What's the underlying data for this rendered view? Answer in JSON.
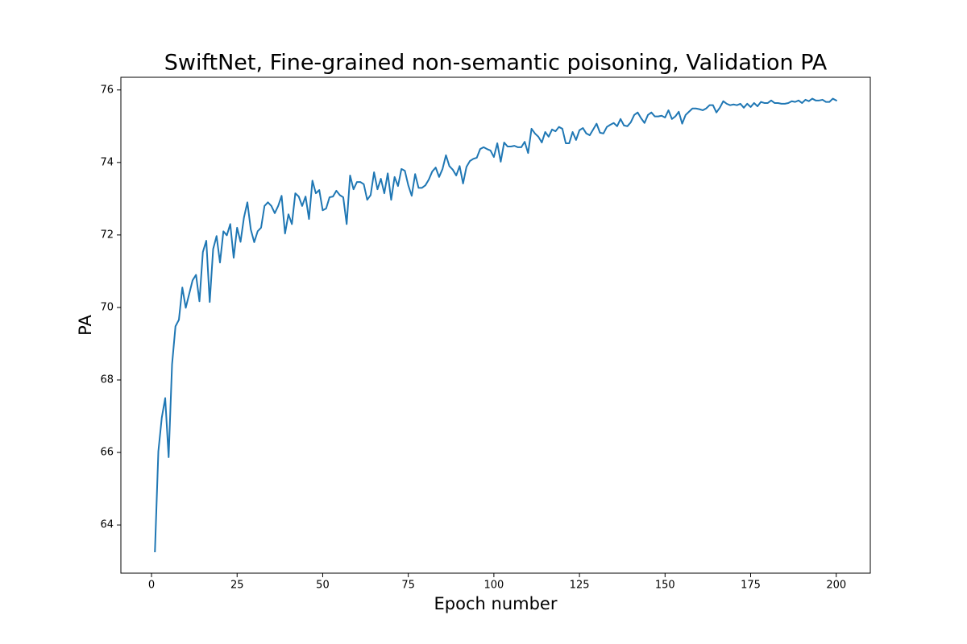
{
  "chart_data": {
    "type": "line",
    "title": "SwiftNet, Fine-grained non-semantic poisoning, Validation PA",
    "x_label": "Epoch number",
    "y_label": "PA",
    "xlim": [
      -8.95,
      209.95
    ],
    "ylim": [
      62.67,
      76.35
    ],
    "xticks": [
      0,
      25,
      50,
      75,
      100,
      125,
      150,
      175,
      200
    ],
    "yticks": [
      64,
      66,
      68,
      70,
      72,
      74,
      76
    ],
    "grid": false,
    "x": [
      1,
      2,
      3,
      4,
      5,
      6,
      7,
      8,
      9,
      10,
      11,
      12,
      13,
      14,
      15,
      16,
      17,
      18,
      19,
      20,
      21,
      22,
      23,
      24,
      25,
      26,
      27,
      28,
      29,
      30,
      31,
      32,
      33,
      34,
      35,
      36,
      37,
      38,
      39,
      40,
      41,
      42,
      43,
      44,
      45,
      46,
      47,
      48,
      49,
      50,
      51,
      52,
      53,
      54,
      55,
      56,
      57,
      58,
      59,
      60,
      61,
      62,
      63,
      64,
      65,
      66,
      67,
      68,
      69,
      70,
      71,
      72,
      73,
      74,
      75,
      76,
      77,
      78,
      79,
      80,
      81,
      82,
      83,
      84,
      85,
      86,
      87,
      88,
      89,
      90,
      91,
      92,
      93,
      94,
      95,
      96,
      97,
      98,
      99,
      100,
      101,
      102,
      103,
      104,
      105,
      106,
      107,
      108,
      109,
      110,
      111,
      112,
      113,
      114,
      115,
      116,
      117,
      118,
      119,
      120,
      121,
      122,
      123,
      124,
      125,
      126,
      127,
      128,
      129,
      130,
      131,
      132,
      133,
      134,
      135,
      136,
      137,
      138,
      139,
      140,
      141,
      142,
      143,
      144,
      145,
      146,
      147,
      148,
      149,
      150,
      151,
      152,
      153,
      154,
      155,
      156,
      157,
      158,
      159,
      160,
      161,
      162,
      163,
      164,
      165,
      166,
      167,
      168,
      169,
      170,
      171,
      172,
      173,
      174,
      175,
      176,
      177,
      178,
      179,
      180,
      181,
      182,
      183,
      184,
      185,
      186,
      187,
      188,
      189,
      190,
      191,
      192,
      193,
      194,
      195,
      196,
      197,
      198,
      199,
      200
    ],
    "series": [
      {
        "color": "#1f77b4",
        "values": [
          63.27,
          66.03,
          66.96,
          67.5,
          65.87,
          68.43,
          69.48,
          69.66,
          70.55,
          69.99,
          70.37,
          70.75,
          70.9,
          70.17,
          71.53,
          71.84,
          70.15,
          71.61,
          71.97,
          71.24,
          72.1,
          71.99,
          72.3,
          71.37,
          72.2,
          71.81,
          72.48,
          72.9,
          72.15,
          71.8,
          72.1,
          72.2,
          72.8,
          72.9,
          72.8,
          72.6,
          72.8,
          73.08,
          72.04,
          72.57,
          72.3,
          73.15,
          73.06,
          72.8,
          73.06,
          72.44,
          73.5,
          73.15,
          73.24,
          72.68,
          72.73,
          73.04,
          73.06,
          73.22,
          73.1,
          73.04,
          72.3,
          73.64,
          73.26,
          73.46,
          73.46,
          73.4,
          72.97,
          73.1,
          73.73,
          73.26,
          73.55,
          73.15,
          73.7,
          72.97,
          73.6,
          73.35,
          73.82,
          73.77,
          73.37,
          73.08,
          73.68,
          73.3,
          73.3,
          73.37,
          73.53,
          73.75,
          73.86,
          73.6,
          73.82,
          74.2,
          73.9,
          73.8,
          73.64,
          73.9,
          73.42,
          73.88,
          74.04,
          74.1,
          74.13,
          74.37,
          74.42,
          74.37,
          74.33,
          74.15,
          74.53,
          74.02,
          74.55,
          74.44,
          74.44,
          74.46,
          74.42,
          74.42,
          74.57,
          74.26,
          74.93,
          74.8,
          74.71,
          74.55,
          74.84,
          74.71,
          74.91,
          74.86,
          74.98,
          74.93,
          74.53,
          74.53,
          74.84,
          74.62,
          74.89,
          74.95,
          74.8,
          74.75,
          74.91,
          75.07,
          74.82,
          74.8,
          74.98,
          75.04,
          75.09,
          75.0,
          75.2,
          75.02,
          75.0,
          75.11,
          75.31,
          75.38,
          75.22,
          75.09,
          75.31,
          75.38,
          75.27,
          75.27,
          75.29,
          75.24,
          75.44,
          75.2,
          75.27,
          75.4,
          75.07,
          75.31,
          75.4,
          75.49,
          75.49,
          75.47,
          75.44,
          75.49,
          75.58,
          75.58,
          75.38,
          75.51,
          75.69,
          75.62,
          75.58,
          75.6,
          75.58,
          75.62,
          75.51,
          75.62,
          75.53,
          75.64,
          75.55,
          75.67,
          75.64,
          75.64,
          75.71,
          75.64,
          75.64,
          75.62,
          75.62,
          75.64,
          75.69,
          75.67,
          75.71,
          75.64,
          75.73,
          75.69,
          75.76,
          75.71,
          75.71,
          75.73,
          75.67,
          75.67,
          75.76,
          75.71
        ]
      }
    ]
  }
}
